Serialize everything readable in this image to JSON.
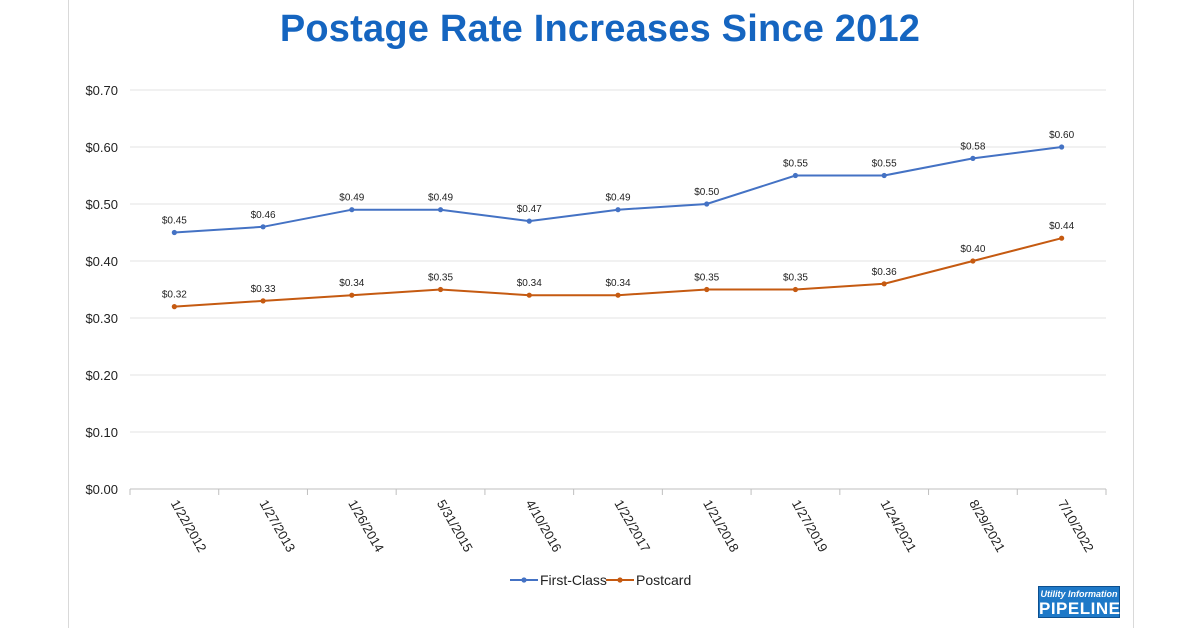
{
  "chart_data": {
    "type": "line",
    "title": "Postage Rate Increases Since 2012",
    "categories": [
      "1/22/2012",
      "1/27/2013",
      "1/26/2014",
      "5/31/2015",
      "4/10/2016",
      "1/22/2017",
      "1/21/2018",
      "1/27/2019",
      "1/24/2021",
      "8/29/2021",
      "7/10/2022"
    ],
    "y_ticks": [
      "$0.00",
      "$0.10",
      "$0.20",
      "$0.30",
      "$0.40",
      "$0.50",
      "$0.60",
      "$0.70"
    ],
    "ylim": [
      0,
      0.7
    ],
    "grid": true,
    "legend_position": "bottom",
    "series": [
      {
        "name": "First-Class",
        "color": "#4472c4",
        "values": [
          0.45,
          0.46,
          0.49,
          0.49,
          0.47,
          0.49,
          0.5,
          0.55,
          0.55,
          0.58,
          0.6
        ],
        "labels": [
          "$0.45",
          "$0.46",
          "$0.49",
          "$0.49",
          "$0.47",
          "$0.49",
          "$0.50",
          "$0.55",
          "$0.55",
          "$0.58",
          "$0.60"
        ]
      },
      {
        "name": "Postcard",
        "color": "#c55a11",
        "values": [
          0.32,
          0.33,
          0.34,
          0.35,
          0.34,
          0.34,
          0.35,
          0.35,
          0.36,
          0.4,
          0.44
        ],
        "labels": [
          "$0.32",
          "$0.33",
          "$0.34",
          "$0.35",
          "$0.34",
          "$0.34",
          "$0.35",
          "$0.35",
          "$0.36",
          "$0.40",
          "$0.44"
        ]
      }
    ]
  },
  "logo": {
    "line1": "Utility Information",
    "line2": "PIPELINE"
  }
}
